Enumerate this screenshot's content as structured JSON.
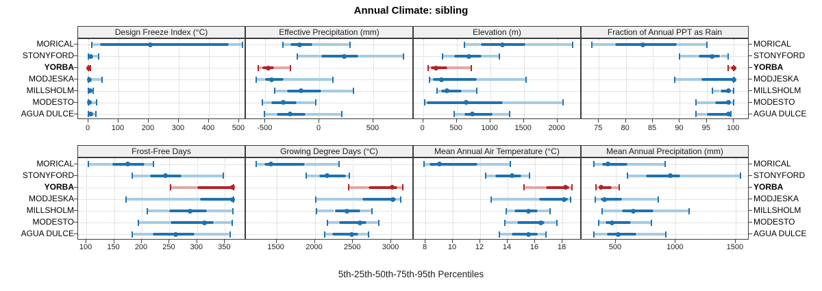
{
  "chart_data": {
    "type": "dotplot-multipanel",
    "title": "Annual Climate: sibling",
    "footer": "5th-25th-50th-75th-95th Percentiles",
    "percentiles": [
      5,
      25,
      50,
      75,
      95
    ],
    "stations": [
      "MORICAL",
      "STONYFORD",
      "YORBA",
      "MODJESKA",
      "MILLSHOLM",
      "MODESTO",
      "AGUA DULCE"
    ],
    "highlight_station": "YORBA",
    "legend_position": "none",
    "grid": "dotted",
    "colors": {
      "series_main": "#1E72B0",
      "series_tail": "#A6CBE3",
      "highlight_main": "#B22427",
      "highlight_tail": "#E3A6A6",
      "gridline": "#C9C9C9",
      "strip_bg": "#F0F0F0",
      "panel_border": "#3C3C3C",
      "text": "#000000"
    },
    "panels": [
      {
        "title": "Design Freeze Index (°C)",
        "row": 0,
        "col": 0,
        "ticks": [
          0,
          100,
          200,
          300,
          400,
          500
        ],
        "domain": [
          -34,
          523
        ],
        "values": {
          "MORICAL": [
            11,
            38,
            205,
            466,
            511
          ],
          "STONYFORD": [
            0,
            2,
            8,
            15,
            35
          ],
          "YORBA": [
            0,
            0,
            2,
            4,
            7
          ],
          "MODJESKA": [
            0,
            1,
            4,
            10,
            45
          ],
          "MILLSHOLM": [
            0,
            2,
            6,
            10,
            15
          ],
          "MODESTO": [
            0,
            1,
            4,
            8,
            27
          ],
          "AGUA DULCE": [
            1,
            4,
            9,
            14,
            26
          ]
        }
      },
      {
        "title": "Effective Precipitation (mm)",
        "row": 0,
        "col": 1,
        "ticks": [
          -500,
          0,
          500
        ],
        "domain": [
          -680,
          875
        ],
        "values": {
          "MORICAL": [
            -337,
            -266,
            -179,
            -63,
            285
          ],
          "STONYFORD": [
            -202,
            19,
            232,
            359,
            779
          ],
          "YORBA": [
            -565,
            -530,
            -475,
            -420,
            -265
          ],
          "MODJESKA": [
            -582,
            -500,
            -443,
            -330,
            127
          ],
          "MILLSHOLM": [
            -411,
            -297,
            -171,
            19,
            316
          ],
          "MODESTO": [
            -527,
            -443,
            -337,
            -211,
            -32
          ],
          "AGUA DULCE": [
            -506,
            -392,
            -274,
            -127,
            209
          ]
        }
      },
      {
        "title": "Elevation (m)",
        "row": 0,
        "col": 2,
        "ticks": [
          0,
          500,
          1000,
          1500,
          2000
        ],
        "domain": [
          -140,
          2360
        ],
        "values": {
          "MORICAL": [
            615,
            860,
            1180,
            1520,
            2230
          ],
          "STONYFORD": [
            289,
            459,
            677,
            867,
            1136
          ],
          "YORBA": [
            75,
            115,
            187,
            357,
            717
          ],
          "MODJESKA": [
            95,
            150,
            268,
            799,
            1533
          ],
          "MILLSHOLM": [
            204,
            270,
            357,
            574,
            799
          ],
          "MODESTO": [
            25,
            50,
            640,
            1185,
            2080
          ],
          "AGUA DULCE": [
            459,
            612,
            728,
            1034,
            1289
          ]
        }
      },
      {
        "title": "Fraction of Annual PPT as Rain",
        "row": 0,
        "col": 3,
        "ticks": [
          75,
          80,
          85,
          90,
          95,
          100
        ],
        "domain": [
          71.8,
          102.9
        ],
        "values": {
          "MORICAL": [
            73.7,
            78,
            83.2,
            89.5,
            95
          ],
          "STONYFORD": [
            90,
            93.5,
            96,
            97.5,
            99
          ],
          "YORBA": [
            99,
            99.5,
            100,
            100,
            100
          ],
          "MODJESKA": [
            89,
            94,
            100,
            100,
            100
          ],
          "MILLSHOLM": [
            96,
            97.5,
            99,
            99.5,
            100
          ],
          "MODESTO": [
            93,
            96.5,
            99,
            99.5,
            100
          ],
          "AGUA DULCE": [
            93,
            95,
            99,
            99,
            99.5
          ]
        }
      },
      {
        "title": "Frost-Free Days",
        "row": 1,
        "col": 0,
        "ticks": [
          100,
          150,
          200,
          250,
          300,
          350
        ],
        "domain": [
          85,
          388
        ],
        "values": {
          "MORICAL": [
            103,
            147,
            174,
            205,
            221
          ],
          "STONYFORD": [
            183,
            215,
            243,
            272,
            347
          ],
          "YORBA": [
            252,
            300,
            364,
            365,
            366
          ],
          "MODJESKA": [
            172,
            305,
            364,
            365,
            366
          ],
          "MILLSHOLM": [
            210,
            250,
            287,
            317,
            364
          ],
          "MODESTO": [
            194,
            252,
            313,
            330,
            363
          ],
          "AGUA DULCE": [
            183,
            220,
            261,
            295,
            359
          ]
        }
      },
      {
        "title": "Growing Degree Days (°C)",
        "row": 1,
        "col": 1,
        "ticks": [
          1500,
          2000,
          2500,
          3000
        ],
        "domain": [
          1100,
          3295
        ],
        "values": {
          "MORICAL": [
            1232,
            1340,
            1430,
            1875,
            2320
          ],
          "STONYFORD": [
            1890,
            2055,
            2160,
            2410,
            2455
          ],
          "YORBA": [
            2440,
            2700,
            3010,
            3080,
            3150
          ],
          "MODJESKA": [
            2010,
            2620,
            3020,
            3060,
            3125
          ],
          "MILLSHOLM": [
            2025,
            2260,
            2425,
            2600,
            2750
          ],
          "MODESTO": [
            2170,
            2320,
            2590,
            2680,
            2840
          ],
          "AGUA DULCE": [
            2130,
            2230,
            2480,
            2570,
            2705
          ]
        }
      },
      {
        "title": "Mean Annual Air Temperature (°C)",
        "row": 1,
        "col": 2,
        "ticks": [
          8,
          10,
          12,
          14,
          16,
          18
        ],
        "domain": [
          7.15,
          19.4
        ],
        "values": {
          "MORICAL": [
            7.9,
            8.3,
            9.0,
            11.8,
            14.2
          ],
          "STONYFORD": [
            12.4,
            13.1,
            14.3,
            15.0,
            15.6
          ],
          "YORBA": [
            15.2,
            16.8,
            18.2,
            18.5,
            18.7
          ],
          "MODJESKA": [
            12.8,
            16.3,
            18.1,
            18.4,
            18.6
          ],
          "MILLSHOLM": [
            13.9,
            14.5,
            15.5,
            16.2,
            17.1
          ],
          "MODESTO": [
            13.8,
            14.7,
            16.4,
            16.7,
            17.6
          ],
          "AGUA DULCE": [
            13.4,
            14.3,
            15.5,
            16.2,
            16.8
          ]
        }
      },
      {
        "title": "Mean Annual Precipitation (mm)",
        "row": 1,
        "col": 3,
        "ticks": [
          500,
          1000,
          1500
        ],
        "domain": [
          215,
          1615
        ],
        "values": {
          "MORICAL": [
            320,
            385,
            435,
            595,
            910
          ],
          "STONYFORD": [
            595,
            750,
            955,
            1040,
            1540
          ],
          "YORBA": [
            335,
            360,
            380,
            465,
            530
          ],
          "MODJESKA": [
            330,
            375,
            405,
            550,
            855
          ],
          "MILLSHOLM": [
            385,
            550,
            645,
            815,
            1110
          ],
          "MODESTO": [
            355,
            415,
            470,
            625,
            795
          ],
          "AGUA DULCE": [
            320,
            425,
            520,
            670,
            920
          ]
        }
      }
    ]
  }
}
